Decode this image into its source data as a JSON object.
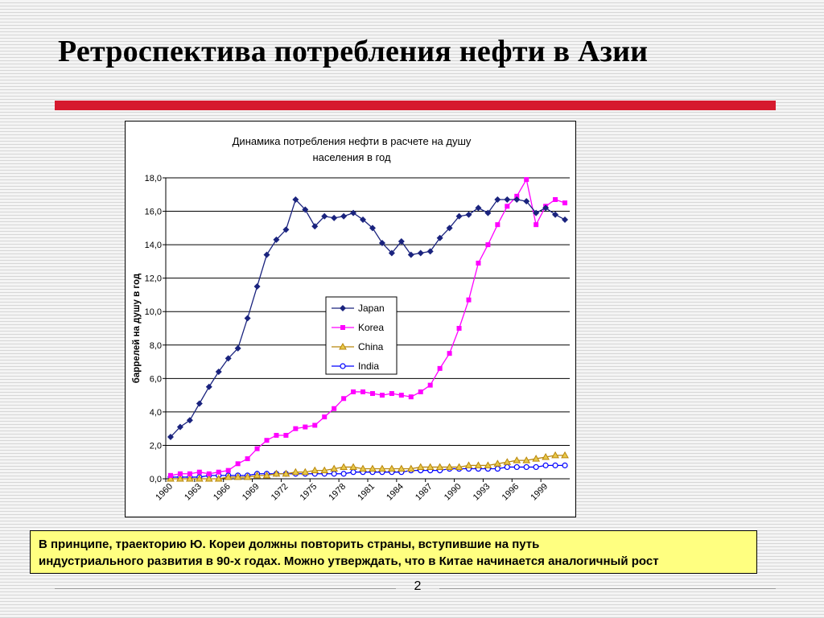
{
  "slide": {
    "title": "Ретроспектива потребления нефти в Азии",
    "note_line1": "В принципе, траекторию Ю. Кореи должны повторить страны, вступившие на путь",
    "note_line2": "индустриального развития в 90-х годах.  Можно утверждать, что в Китае начинается аналогичный рост",
    "page_number": "2",
    "accent_color": "#d61a2e",
    "note_background": "#ffff80"
  },
  "chart_data": {
    "type": "line",
    "title_line1": "Динамика потребления нефти в расчете на душу",
    "title_line2": "населения в год",
    "ylabel": "баррелей на душу в год",
    "xlabel": "",
    "ylim": [
      0,
      18
    ],
    "y_ticks": [
      "0,0",
      "2,0",
      "4,0",
      "6,0",
      "8,0",
      "10,0",
      "12,0",
      "14,0",
      "16,0",
      "18,0"
    ],
    "x": [
      1960,
      1961,
      1962,
      1963,
      1964,
      1965,
      1966,
      1967,
      1968,
      1969,
      1970,
      1971,
      1972,
      1973,
      1974,
      1975,
      1976,
      1977,
      1978,
      1979,
      1980,
      1981,
      1982,
      1983,
      1984,
      1985,
      1986,
      1987,
      1988,
      1989,
      1990,
      1991,
      1992,
      1993,
      1994,
      1995,
      1996,
      1997,
      1998,
      1999,
      2000,
      2001
    ],
    "x_tick_labels": [
      "1960",
      "1963",
      "1966",
      "1969",
      "1972",
      "1975",
      "1978",
      "1981",
      "1984",
      "1987",
      "1990",
      "1993",
      "1996",
      "1999"
    ],
    "grid": true,
    "legend_position": "center",
    "series": [
      {
        "name": "Japan",
        "color": "#1a237e",
        "marker": "diamond",
        "values": [
          2.5,
          3.1,
          3.5,
          4.5,
          5.5,
          6.4,
          7.2,
          7.8,
          9.6,
          11.5,
          13.4,
          14.3,
          14.9,
          16.7,
          16.1,
          15.1,
          15.7,
          15.6,
          15.7,
          15.9,
          15.5,
          15.0,
          14.1,
          13.5,
          14.2,
          13.4,
          13.5,
          13.6,
          14.4,
          15.0,
          15.7,
          15.8,
          16.2,
          15.9,
          16.7,
          16.7,
          16.7,
          16.6,
          15.9,
          16.2,
          15.8,
          15.5
        ]
      },
      {
        "name": "Korea",
        "color": "#ff00ff",
        "marker": "square",
        "values": [
          0.2,
          0.3,
          0.3,
          0.4,
          0.3,
          0.4,
          0.5,
          0.9,
          1.2,
          1.8,
          2.3,
          2.6,
          2.6,
          3.0,
          3.1,
          3.2,
          3.7,
          4.2,
          4.8,
          5.2,
          5.2,
          5.1,
          5.0,
          5.1,
          5.0,
          4.9,
          5.2,
          5.6,
          6.6,
          7.5,
          9.0,
          10.7,
          12.9,
          14.0,
          15.2,
          16.3,
          16.9,
          17.9,
          15.2,
          16.3,
          16.7,
          16.5
        ]
      },
      {
        "name": "China",
        "color": "#b8860b",
        "marker": "triangle",
        "values": [
          0.0,
          0.0,
          0.0,
          0.0,
          0.0,
          0.0,
          0.1,
          0.1,
          0.1,
          0.2,
          0.2,
          0.3,
          0.3,
          0.4,
          0.4,
          0.5,
          0.5,
          0.6,
          0.7,
          0.7,
          0.6,
          0.6,
          0.6,
          0.6,
          0.6,
          0.6,
          0.7,
          0.7,
          0.7,
          0.7,
          0.7,
          0.8,
          0.8,
          0.8,
          0.9,
          1.0,
          1.1,
          1.1,
          1.2,
          1.3,
          1.4,
          1.4
        ]
      },
      {
        "name": "India",
        "color": "#0000ff",
        "marker": "circle",
        "values": [
          0.1,
          0.1,
          0.1,
          0.1,
          0.2,
          0.2,
          0.2,
          0.2,
          0.2,
          0.3,
          0.3,
          0.3,
          0.3,
          0.3,
          0.3,
          0.3,
          0.3,
          0.3,
          0.3,
          0.4,
          0.4,
          0.4,
          0.4,
          0.4,
          0.4,
          0.5,
          0.5,
          0.5,
          0.5,
          0.6,
          0.6,
          0.6,
          0.6,
          0.6,
          0.6,
          0.7,
          0.7,
          0.7,
          0.7,
          0.8,
          0.8,
          0.8
        ]
      }
    ]
  }
}
